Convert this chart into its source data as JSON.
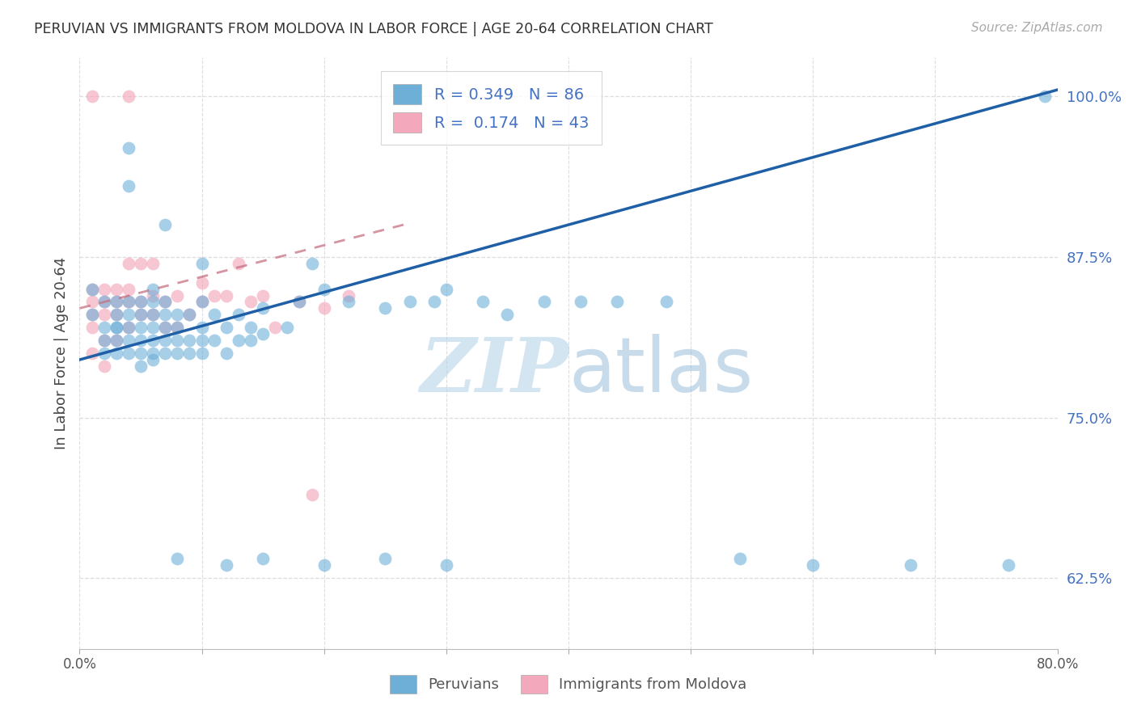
{
  "title": "PERUVIAN VS IMMIGRANTS FROM MOLDOVA IN LABOR FORCE | AGE 20-64 CORRELATION CHART",
  "source": "Source: ZipAtlas.com",
  "ylabel": "In Labor Force | Age 20-64",
  "xlim": [
    0.0,
    0.8
  ],
  "ylim": [
    0.57,
    1.03
  ],
  "yticks": [
    0.625,
    0.75,
    0.875,
    1.0
  ],
  "ytick_labels": [
    "62.5%",
    "75.0%",
    "87.5%",
    "100.0%"
  ],
  "xticks": [
    0.0,
    0.1,
    0.2,
    0.3,
    0.4,
    0.5,
    0.6,
    0.7,
    0.8
  ],
  "xtick_labels": [
    "0.0%",
    "",
    "",
    "",
    "",
    "",
    "",
    "",
    "80.0%"
  ],
  "blue_R": 0.349,
  "blue_N": 86,
  "pink_R": 0.174,
  "pink_N": 43,
  "blue_color": "#6dafd7",
  "pink_color": "#f4a8bc",
  "blue_line_color": "#1f5fa6",
  "pink_line_color": "#c87080",
  "blue_line_x0": 0.0,
  "blue_line_y0": 0.795,
  "blue_line_x1": 0.8,
  "blue_line_y1": 1.005,
  "pink_line_x0": 0.0,
  "pink_line_y0": 0.835,
  "pink_line_x1": 0.265,
  "pink_line_y1": 0.9,
  "blue_scatter_x": [
    0.01,
    0.01,
    0.02,
    0.02,
    0.02,
    0.02,
    0.03,
    0.03,
    0.03,
    0.03,
    0.03,
    0.03,
    0.04,
    0.04,
    0.04,
    0.04,
    0.04,
    0.05,
    0.05,
    0.05,
    0.05,
    0.05,
    0.05,
    0.06,
    0.06,
    0.06,
    0.06,
    0.06,
    0.06,
    0.06,
    0.07,
    0.07,
    0.07,
    0.07,
    0.07,
    0.08,
    0.08,
    0.08,
    0.08,
    0.09,
    0.09,
    0.09,
    0.1,
    0.1,
    0.1,
    0.1,
    0.11,
    0.11,
    0.12,
    0.12,
    0.13,
    0.13,
    0.14,
    0.14,
    0.15,
    0.15,
    0.17,
    0.18,
    0.19,
    0.2,
    0.22,
    0.25,
    0.27,
    0.29,
    0.3,
    0.33,
    0.35,
    0.38,
    0.41,
    0.44,
    0.48,
    0.54,
    0.6,
    0.68,
    0.76,
    0.79,
    0.08,
    0.12,
    0.15,
    0.2,
    0.25,
    0.3,
    0.04,
    0.04,
    0.07,
    0.1
  ],
  "blue_scatter_y": [
    0.83,
    0.85,
    0.82,
    0.84,
    0.8,
    0.81,
    0.8,
    0.81,
    0.82,
    0.83,
    0.84,
    0.82,
    0.8,
    0.81,
    0.82,
    0.83,
    0.84,
    0.79,
    0.8,
    0.81,
    0.82,
    0.83,
    0.84,
    0.795,
    0.8,
    0.81,
    0.82,
    0.83,
    0.84,
    0.85,
    0.8,
    0.81,
    0.82,
    0.83,
    0.84,
    0.8,
    0.81,
    0.82,
    0.83,
    0.8,
    0.81,
    0.83,
    0.8,
    0.81,
    0.82,
    0.84,
    0.81,
    0.83,
    0.8,
    0.82,
    0.81,
    0.83,
    0.81,
    0.82,
    0.815,
    0.835,
    0.82,
    0.84,
    0.87,
    0.85,
    0.84,
    0.835,
    0.84,
    0.84,
    0.85,
    0.84,
    0.83,
    0.84,
    0.84,
    0.84,
    0.84,
    0.64,
    0.635,
    0.635,
    0.635,
    1.0,
    0.64,
    0.635,
    0.64,
    0.635,
    0.64,
    0.635,
    0.93,
    0.96,
    0.9,
    0.87
  ],
  "pink_scatter_x": [
    0.01,
    0.01,
    0.01,
    0.01,
    0.01,
    0.02,
    0.02,
    0.02,
    0.02,
    0.02,
    0.03,
    0.03,
    0.03,
    0.03,
    0.04,
    0.04,
    0.04,
    0.04,
    0.05,
    0.05,
    0.05,
    0.06,
    0.06,
    0.06,
    0.07,
    0.07,
    0.08,
    0.08,
    0.09,
    0.1,
    0.1,
    0.11,
    0.12,
    0.13,
    0.14,
    0.15,
    0.16,
    0.18,
    0.19,
    0.2,
    0.22,
    0.01,
    0.04
  ],
  "pink_scatter_y": [
    0.82,
    0.83,
    0.84,
    0.85,
    0.8,
    0.79,
    0.81,
    0.83,
    0.84,
    0.85,
    0.81,
    0.83,
    0.84,
    0.85,
    0.82,
    0.84,
    0.85,
    0.87,
    0.83,
    0.84,
    0.87,
    0.83,
    0.845,
    0.87,
    0.82,
    0.84,
    0.82,
    0.845,
    0.83,
    0.84,
    0.855,
    0.845,
    0.845,
    0.87,
    0.84,
    0.845,
    0.82,
    0.84,
    0.69,
    0.835,
    0.845,
    1.0,
    1.0
  ],
  "watermark_zip": "ZIP",
  "watermark_atlas": "atlas",
  "background_color": "#ffffff",
  "grid_color": "#dddddd"
}
